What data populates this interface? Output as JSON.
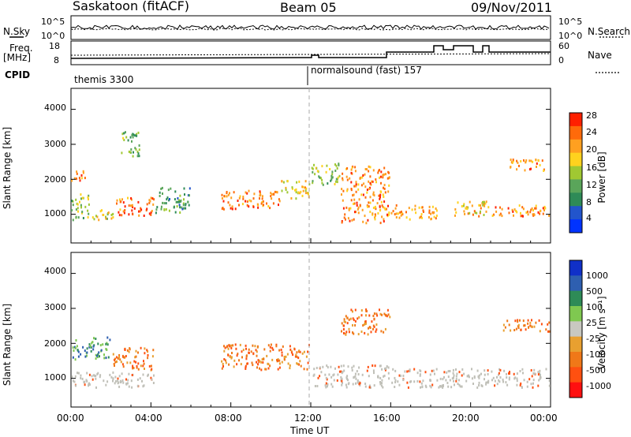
{
  "header": {
    "station": "Saskatoon (fitACF)",
    "beam": "Beam 05",
    "date": "09/Nov/2011"
  },
  "strip": {
    "nsky_label": "N.Sky",
    "nsky_ticks": [
      "10^5",
      "10^0"
    ],
    "nsearch_label": "N.Search",
    "nsearch_ticks": [
      "10^5",
      "10^0"
    ],
    "freq_label": "Freq.",
    "freq_unit": "[MHz]",
    "freq_ticks": [
      "18",
      "8"
    ],
    "nave_label": "Nave",
    "nave_ticks": [
      "60",
      "0"
    ],
    "cpid_label": "CPID",
    "cpid_segments": [
      {
        "name": "themis 3300",
        "start_ut": 0,
        "end_ut": 12
      },
      {
        "name": "normalsound (fast) 157",
        "start_ut": 12,
        "end_ut": 24
      }
    ]
  },
  "colors": {
    "power_scale": [
      "#0033ff",
      "#2255cc",
      "#2e8b57",
      "#5aa55a",
      "#a0c832",
      "#ffd21e",
      "#ffa020",
      "#ff6a0a",
      "#ff2000"
    ],
    "velocity_scale": [
      "#1030c8",
      "#2e5fb0",
      "#2e8b57",
      "#7fc850",
      "#c8c8c0",
      "#e8a030",
      "#f07818",
      "#ff5010",
      "#ff1010"
    ],
    "ground_scatter": "#c0c0b8"
  },
  "chart_data": [
    {
      "type": "heatmap",
      "panel": "power",
      "xlabel": "",
      "ylabel": "Slant Range [km]",
      "x_range_ut_hours": [
        0,
        24
      ],
      "ylim": [
        180,
        4600
      ],
      "yticks": [
        "1000",
        "2000",
        "3000",
        "4000"
      ],
      "colorbar": {
        "label": "Power [dB]",
        "ticks": [
          "4",
          "8",
          "12",
          "16",
          "20",
          "24",
          "28"
        ],
        "range": [
          0,
          30
        ]
      },
      "echo_regions": [
        {
          "t": [
            0.0,
            0.8
          ],
          "range_km": [
            1900,
            2300
          ],
          "power_db": 24
        },
        {
          "t": [
            0.0,
            1.0
          ],
          "range_km": [
            800,
            1600
          ],
          "power_db": 14
        },
        {
          "t": [
            1.0,
            2.2
          ],
          "range_km": [
            800,
            1200
          ],
          "power_db": 18
        },
        {
          "t": [
            2.2,
            4.2
          ],
          "range_km": [
            900,
            1500
          ],
          "power_db": 26
        },
        {
          "t": [
            2.5,
            3.5
          ],
          "range_km": [
            2600,
            3400
          ],
          "power_db": 12
        },
        {
          "t": [
            4.2,
            6.0
          ],
          "range_km": [
            1000,
            1800
          ],
          "power_db": 10
        },
        {
          "t": [
            7.5,
            10.5
          ],
          "range_km": [
            1100,
            1700
          ],
          "power_db": 25
        },
        {
          "t": [
            10.5,
            12.0
          ],
          "range_km": [
            1400,
            2000
          ],
          "power_db": 20
        },
        {
          "t": [
            12.0,
            13.5
          ],
          "range_km": [
            1800,
            2500
          ],
          "power_db": 14
        },
        {
          "t": [
            13.5,
            16.0
          ],
          "range_km": [
            700,
            2400
          ],
          "power_db": 24
        },
        {
          "t": [
            16.0,
            18.4
          ],
          "range_km": [
            800,
            1300
          ],
          "power_db": 22
        },
        {
          "t": [
            19.0,
            21.0
          ],
          "range_km": [
            900,
            1400
          ],
          "power_db": 20
        },
        {
          "t": [
            21.0,
            24.0
          ],
          "range_km": [
            900,
            1300
          ],
          "power_db": 24
        },
        {
          "t": [
            21.8,
            23.8
          ],
          "range_km": [
            2200,
            2600
          ],
          "power_db": 24
        }
      ]
    },
    {
      "type": "heatmap",
      "panel": "velocity",
      "xlabel": "Time UT",
      "ylabel": "Slant Range [km]",
      "x_range_ut_hours": [
        0,
        24
      ],
      "xticks": [
        "00:00",
        "04:00",
        "08:00",
        "12:00",
        "16:00",
        "20:00",
        "00:00"
      ],
      "ylim": [
        180,
        4600
      ],
      "yticks": [
        "1000",
        "2000",
        "3000",
        "4000"
      ],
      "colorbar": {
        "label": "Velocity [m s⁻¹]",
        "ticks": [
          "1000",
          "500",
          "100",
          "25",
          "-25",
          "-100",
          "-500",
          "-1000"
        ],
        "range": [
          -1000,
          1000
        ]
      },
      "echo_regions": [
        {
          "t": [
            0.0,
            4.2
          ],
          "range_km": [
            700,
            1200
          ],
          "velocity_ms": 0
        },
        {
          "t": [
            0.0,
            2.0
          ],
          "range_km": [
            1500,
            2200
          ],
          "velocity_ms": 200
        },
        {
          "t": [
            2.0,
            4.2
          ],
          "range_km": [
            1200,
            1900
          ],
          "velocity_ms": -150
        },
        {
          "t": [
            7.5,
            12.0
          ],
          "range_km": [
            1200,
            2000
          ],
          "velocity_ms": -200
        },
        {
          "t": [
            12.0,
            16.0
          ],
          "range_km": [
            700,
            1400
          ],
          "velocity_ms": 0
        },
        {
          "t": [
            16.0,
            24.0
          ],
          "range_km": [
            700,
            1300
          ],
          "velocity_ms": 0
        },
        {
          "t": [
            13.5,
            16.0
          ],
          "range_km": [
            2200,
            3000
          ],
          "velocity_ms": -300
        },
        {
          "t": [
            21.5,
            24.0
          ],
          "range_km": [
            2300,
            2700
          ],
          "velocity_ms": -250
        }
      ]
    }
  ]
}
